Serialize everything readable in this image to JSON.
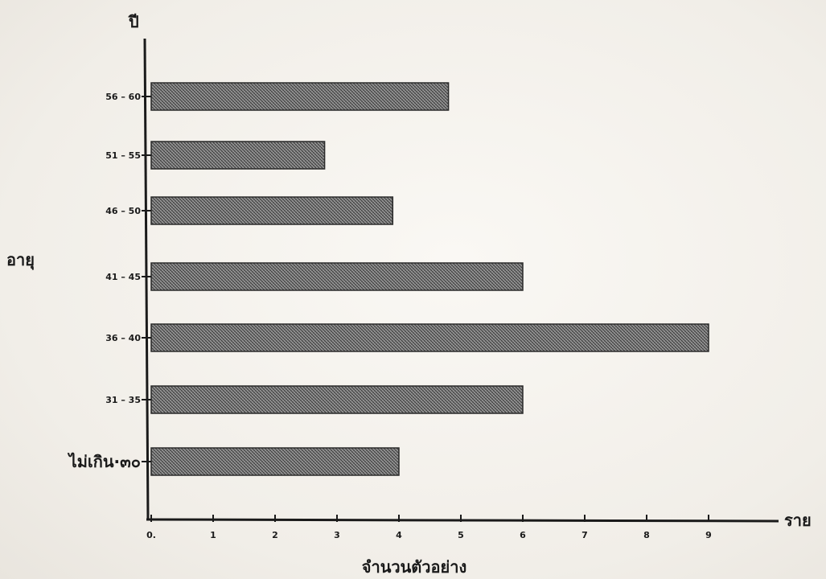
{
  "chart_data": {
    "type": "bar",
    "orientation": "horizontal",
    "categories": [
      "ไม่เกิน ๓๐",
      "31 – 35",
      "36 – 40",
      "41 – 45",
      "46 – 50",
      "51 – 55",
      "56 – 60"
    ],
    "category_tick_labels": [
      "ไม่เกิน·๓๐",
      "31 – 35",
      "36 – 40",
      "41 – 45",
      "46 – 50",
      "51 – 55",
      "56 – 60"
    ],
    "values": [
      4,
      6,
      9,
      6,
      3.9,
      2.8,
      4.8
    ],
    "xlabel": "จำนวนตัวอย่าง",
    "xunit": "ราย",
    "ylabel": "อายุ",
    "yunit": "ปี",
    "xlim": [
      0,
      9.5
    ],
    "x_ticks": [
      0,
      1,
      2,
      3,
      4,
      5,
      6,
      7,
      8,
      9
    ],
    "x_tick_labels": [
      "0.",
      "1",
      "2",
      "3",
      "4",
      "5",
      "6",
      "7",
      "8",
      "9"
    ],
    "grid": false,
    "bar_fill": "hatched",
    "bar_color": "#8a8a8a"
  }
}
